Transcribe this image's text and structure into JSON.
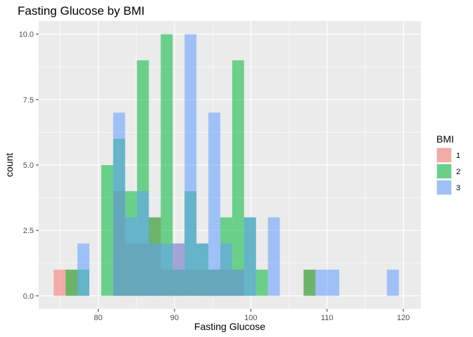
{
  "chart_data": {
    "type": "bar",
    "subtype": "overlapping-histogram",
    "title": "Fasting Glucose by BMI",
    "xlabel": "Fasting Glucose",
    "ylabel": "count",
    "xlim": [
      72.2,
      122.3
    ],
    "ylim": [
      -0.5,
      10.5
    ],
    "x_ticks": [
      80,
      90,
      100,
      110,
      120
    ],
    "x_tick_labels": [
      "80",
      "90",
      "100",
      "110",
      "120"
    ],
    "y_ticks": [
      0,
      2.5,
      5,
      7.5,
      10
    ],
    "y_tick_labels": [
      "0.0",
      "2.5",
      "5.0",
      "7.5",
      "10.0"
    ],
    "grid": true,
    "legend": {
      "title": "BMI",
      "position": "right"
    },
    "bin_width": 1.56,
    "bin_centers": [
      74.94,
      76.5,
      78.06,
      79.62,
      81.18,
      82.74,
      84.3,
      85.86,
      87.42,
      88.98,
      90.54,
      92.1,
      93.66,
      95.22,
      96.78,
      98.34,
      99.9,
      101.46,
      103.02,
      104.58,
      106.14,
      107.7,
      109.26,
      110.82,
      112.38,
      113.94,
      115.5,
      117.06,
      118.62,
      120.18
    ],
    "series": [
      {
        "name": "1",
        "color": "#F8766D",
        "values": [
          1,
          1,
          0,
          0,
          0,
          4,
          2,
          2,
          3,
          1,
          2,
          1,
          1,
          1,
          1,
          1,
          0,
          0,
          0,
          0,
          0,
          1,
          0,
          0,
          0,
          0,
          0,
          0,
          0,
          0
        ]
      },
      {
        "name": "2",
        "color": "#00BA38",
        "values": [
          0,
          1,
          1,
          0,
          5,
          6,
          4,
          9,
          3,
          10,
          1,
          4,
          2,
          1,
          3,
          9,
          3,
          1,
          0,
          0,
          0,
          1,
          0,
          0,
          0,
          0,
          0,
          0,
          0,
          0
        ]
      },
      {
        "name": "3",
        "color": "#619CFF",
        "values": [
          0,
          0,
          2,
          0,
          0,
          7,
          3,
          4,
          2,
          2,
          2,
          10,
          2,
          7,
          2,
          1,
          3,
          0,
          3,
          0,
          0,
          0,
          1,
          1,
          0,
          0,
          0,
          0,
          1,
          0
        ]
      }
    ]
  }
}
